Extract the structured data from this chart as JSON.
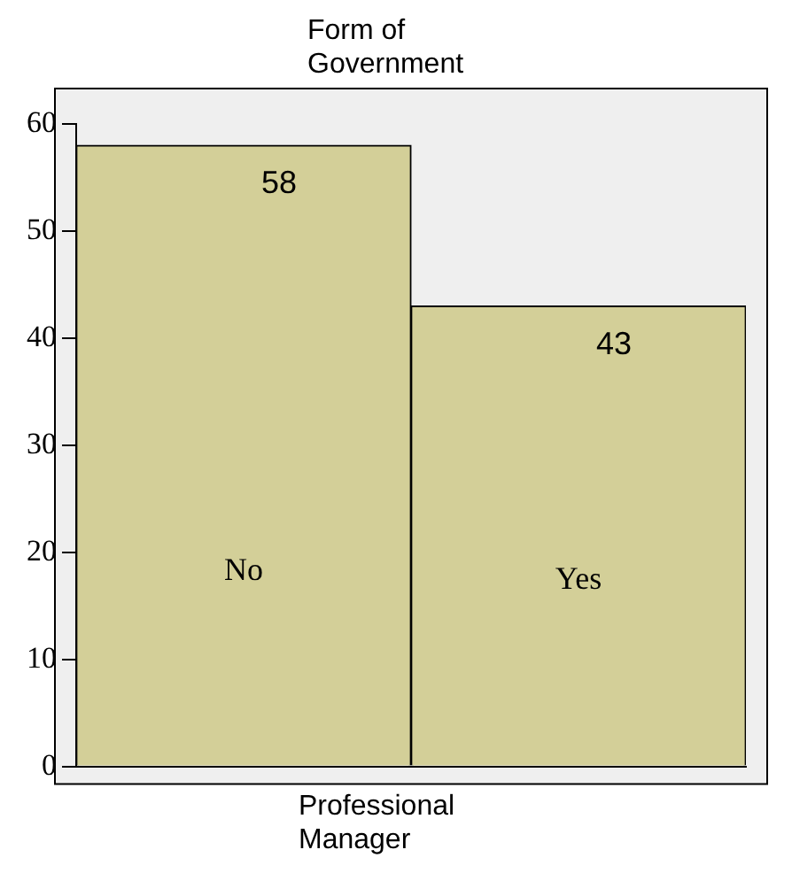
{
  "chart_data": {
    "type": "bar",
    "title": "Form of Government",
    "xlabel": "Professional Manager",
    "categories": [
      "No",
      "Yes"
    ],
    "values": [
      58,
      43
    ],
    "color": "#d3cf98",
    "ylim": [
      0,
      60
    ],
    "yticks": [
      0,
      10,
      20,
      30,
      40,
      50,
      60
    ],
    "grid": false,
    "data_labels": true
  }
}
